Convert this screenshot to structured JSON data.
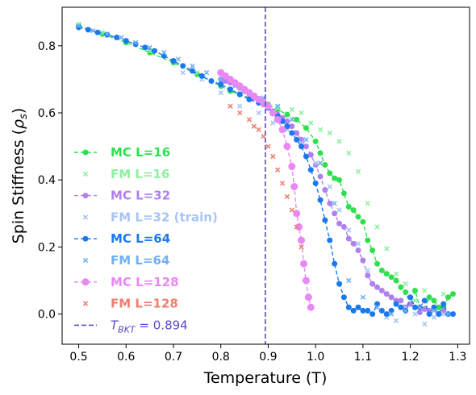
{
  "chart_data": {
    "type": "line",
    "xlabel": "Temperature (T)",
    "ylabel_main": "Spin Stiffness (",
    "ylabel_sym": "ρ",
    "ylabel_sub": "s",
    "ylabel_end": ")",
    "xlim": [
      0.465,
      1.325
    ],
    "ylim": [
      -0.09,
      0.915
    ],
    "xticks": [
      0.5,
      0.6,
      0.7,
      0.8,
      0.9,
      1.0,
      1.1,
      1.2,
      1.3
    ],
    "xtick_labels": [
      "0.5",
      "0.6",
      "0.7",
      "0.8",
      "0.9",
      "1.0",
      "1.1",
      "1.2",
      "1.3"
    ],
    "yticks": [
      0.0,
      0.2,
      0.4,
      0.6,
      0.8
    ],
    "ytick_labels": [
      "0.0",
      "0.2",
      "0.4",
      "0.6",
      "0.8"
    ],
    "grid": false,
    "legend_position": "left-center",
    "vline": {
      "x": 0.894,
      "label_sym": "T",
      "label_sub": "BKT",
      "label_rest": " = 0.894",
      "color": "#5a48c8"
    },
    "series": [
      {
        "name": "MC L=16",
        "kind": "mc",
        "color": "#2ee04e",
        "marker_size": 3.5,
        "x": [
          0.5,
          0.55,
          0.6,
          0.65,
          0.7,
          0.75,
          0.8,
          0.82,
          0.84,
          0.86,
          0.88,
          0.9,
          0.92,
          0.94,
          0.96,
          0.98,
          1.0,
          1.01,
          1.02,
          1.03,
          1.04,
          1.05,
          1.06,
          1.07,
          1.08,
          1.09,
          1.1,
          1.11,
          1.12,
          1.13,
          1.14,
          1.15,
          1.16,
          1.17,
          1.18,
          1.19,
          1.2,
          1.21,
          1.22,
          1.23,
          1.24,
          1.25,
          1.26,
          1.27,
          1.28,
          1.29
        ],
        "y": [
          0.86,
          0.835,
          0.81,
          0.78,
          0.75,
          0.715,
          0.68,
          0.665,
          0.655,
          0.645,
          0.635,
          0.625,
          0.61,
          0.595,
          0.58,
          0.555,
          0.515,
          0.48,
          0.445,
          0.42,
          0.405,
          0.4,
          0.36,
          0.32,
          0.31,
          0.29,
          0.275,
          0.22,
          0.19,
          0.15,
          0.13,
          0.12,
          0.11,
          0.1,
          0.08,
          0.065,
          0.03,
          0.07,
          0.02,
          0.015,
          0.05,
          0.04,
          0.02,
          0.02,
          0.05,
          0.06
        ]
      },
      {
        "name": "FM L=16",
        "kind": "fm",
        "color": "#8ef0a0",
        "x": [
          0.5,
          0.55,
          0.6,
          0.65,
          0.7,
          0.75,
          0.8,
          0.84,
          0.88,
          0.92,
          0.95,
          0.97,
          0.99,
          1.01,
          1.03,
          1.05,
          1.07,
          1.09,
          1.11,
          1.13,
          1.15,
          1.17,
          1.19,
          1.21,
          1.23,
          1.25,
          1.27
        ],
        "y": [
          0.865,
          0.84,
          0.815,
          0.785,
          0.755,
          0.72,
          0.685,
          0.66,
          0.64,
          0.615,
          0.61,
          0.6,
          0.57,
          0.55,
          0.54,
          0.515,
          0.48,
          0.425,
          0.33,
          0.26,
          0.195,
          0.12,
          0.09,
          0.04,
          0.07,
          0.01,
          0.06
        ]
      },
      {
        "name": "MC L=32",
        "kind": "mc",
        "color": "#b080f0",
        "marker_size": 3.5,
        "x": [
          0.8,
          0.81,
          0.82,
          0.83,
          0.84,
          0.85,
          0.86,
          0.87,
          0.88,
          0.89,
          0.9,
          0.91,
          0.92,
          0.93,
          0.94,
          0.95,
          0.96,
          0.97,
          0.98,
          0.99,
          1.0,
          1.01,
          1.02,
          1.03,
          1.04,
          1.05,
          1.06,
          1.07,
          1.08,
          1.09,
          1.1,
          1.11,
          1.12,
          1.13,
          1.14,
          1.15,
          1.16,
          1.17,
          1.18,
          1.19,
          1.2,
          1.21,
          1.22,
          1.23,
          1.24,
          1.25,
          1.26,
          1.27,
          1.28
        ],
        "y": [
          0.7,
          0.695,
          0.69,
          0.685,
          0.675,
          0.665,
          0.655,
          0.645,
          0.635,
          0.625,
          0.615,
          0.605,
          0.595,
          0.585,
          0.575,
          0.56,
          0.54,
          0.52,
          0.5,
          0.475,
          0.445,
          0.41,
          0.37,
          0.33,
          0.3,
          0.27,
          0.26,
          0.225,
          0.21,
          0.19,
          0.16,
          0.115,
          0.09,
          0.08,
          0.07,
          0.06,
          0.05,
          0.04,
          0.04,
          0.02,
          0.03,
          0.02,
          0.005,
          0.015,
          0.01,
          0.02,
          0.0,
          0.01,
          0.0
        ]
      },
      {
        "name": "FM L=32 (train)",
        "kind": "fm",
        "color": "#a8c4f6",
        "x": [
          0.72,
          0.76,
          0.8,
          0.84,
          0.88,
          0.91,
          0.94,
          0.97,
          1.0,
          1.03,
          1.05,
          1.07,
          1.09,
          1.11,
          1.13,
          1.15,
          1.17,
          1.19,
          1.21,
          1.23,
          1.25,
          1.27
        ],
        "y": [
          0.72,
          0.7,
          0.66,
          0.62,
          0.6,
          0.57,
          0.55,
          0.51,
          0.45,
          0.38,
          0.31,
          0.25,
          0.21,
          0.13,
          0.02,
          -0.01,
          -0.02,
          0.02,
          0.0,
          -0.03,
          -0.01,
          0.0
        ]
      },
      {
        "name": "MC L=64",
        "kind": "mc",
        "color": "#1a78f0",
        "marker_size": 3.5,
        "x": [
          0.5,
          0.52,
          0.54,
          0.56,
          0.58,
          0.6,
          0.62,
          0.64,
          0.66,
          0.68,
          0.7,
          0.72,
          0.74,
          0.76,
          0.78,
          0.8,
          0.82,
          0.84,
          0.86,
          0.88,
          0.9,
          0.91,
          0.92,
          0.93,
          0.94,
          0.95,
          0.96,
          0.97,
          0.98,
          0.99,
          1.0,
          1.01,
          1.02,
          1.03,
          1.04,
          1.05,
          1.06,
          1.07,
          1.08,
          1.09,
          1.1,
          1.11,
          1.12,
          1.13,
          1.14,
          1.15,
          1.16,
          1.17,
          1.18,
          1.19,
          1.2,
          1.21,
          1.22,
          1.23,
          1.24,
          1.25,
          1.26,
          1.27,
          1.28,
          1.29
        ],
        "y": [
          0.855,
          0.848,
          0.84,
          0.833,
          0.825,
          0.815,
          0.805,
          0.795,
          0.785,
          0.77,
          0.755,
          0.74,
          0.725,
          0.71,
          0.695,
          0.685,
          0.67,
          0.655,
          0.64,
          0.63,
          0.615,
          0.6,
          0.59,
          0.575,
          0.56,
          0.54,
          0.52,
          0.5,
          0.47,
          0.43,
          0.39,
          0.34,
          0.28,
          0.22,
          0.15,
          0.09,
          0.05,
          0.02,
          0.01,
          0.02,
          0.01,
          0.01,
          0.0,
          0.03,
          0.01,
          0.0,
          0.01,
          0.03,
          0.02,
          0.01,
          0.05,
          0.02,
          0.02,
          0.04,
          0.0,
          0.02,
          0.0,
          0.03,
          0.0,
          0.0
        ]
      },
      {
        "name": "FM L=64",
        "kind": "fm",
        "color": "#70b0f5",
        "x": [
          0.5,
          0.53,
          0.56,
          0.59,
          0.62,
          0.65,
          0.68,
          0.71,
          0.74,
          0.77,
          0.8,
          0.83,
          0.86,
          0.89,
          0.92,
          0.95,
          0.98,
          1.01,
          1.04,
          1.07,
          1.1,
          1.13,
          1.16,
          1.19,
          1.22,
          1.25,
          1.28
        ],
        "y": [
          0.86,
          0.845,
          0.835,
          0.825,
          0.81,
          0.795,
          0.78,
          0.76,
          0.74,
          0.72,
          0.7,
          0.68,
          0.66,
          0.645,
          0.62,
          0.58,
          0.52,
          0.45,
          0.33,
          0.1,
          0.05,
          0.02,
          0.0,
          0.01,
          0.02,
          0.01,
          0.0
        ]
      },
      {
        "name": "MC L=128",
        "kind": "mc",
        "color": "#e888f5",
        "marker_size": 4.5,
        "x": [
          0.8,
          0.81,
          0.82,
          0.83,
          0.84,
          0.85,
          0.86,
          0.87,
          0.88,
          0.89,
          0.9,
          0.91,
          0.92,
          0.93,
          0.94,
          0.95,
          0.955,
          0.96,
          0.965,
          0.97,
          0.975,
          0.98,
          0.985,
          0.99
        ],
        "y": [
          0.72,
          0.71,
          0.7,
          0.69,
          0.68,
          0.67,
          0.66,
          0.65,
          0.64,
          0.63,
          0.62,
          0.6,
          0.58,
          0.55,
          0.5,
          0.44,
          0.38,
          0.3,
          0.26,
          0.22,
          0.15,
          0.1,
          0.05,
          0.02
        ]
      },
      {
        "name": "FM L=128",
        "kind": "fm",
        "color": "#f08070",
        "x": [
          0.82,
          0.84,
          0.86,
          0.87,
          0.88,
          0.89,
          0.9,
          0.91,
          0.92,
          0.93,
          0.94,
          0.95,
          0.96,
          0.97
        ],
        "y": [
          0.62,
          0.6,
          0.58,
          0.56,
          0.55,
          0.53,
          0.5,
          0.47,
          0.43,
          0.39,
          0.35,
          0.31,
          0.26,
          0.2
        ]
      }
    ]
  }
}
